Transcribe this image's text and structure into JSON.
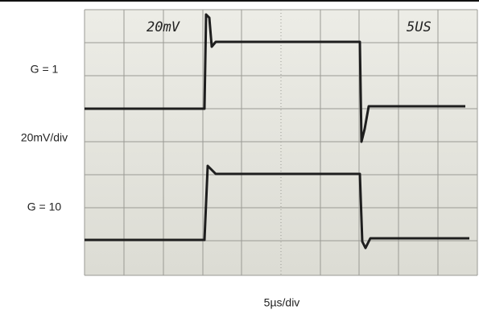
{
  "labels": {
    "top_gain": "G = 1",
    "vertical_scale": "20mV/div",
    "bottom_gain": "G = 10",
    "horizontal_scale": "5µs/div"
  },
  "screen": {
    "volts_note": "20mV",
    "time_note": "5US"
  }
}
